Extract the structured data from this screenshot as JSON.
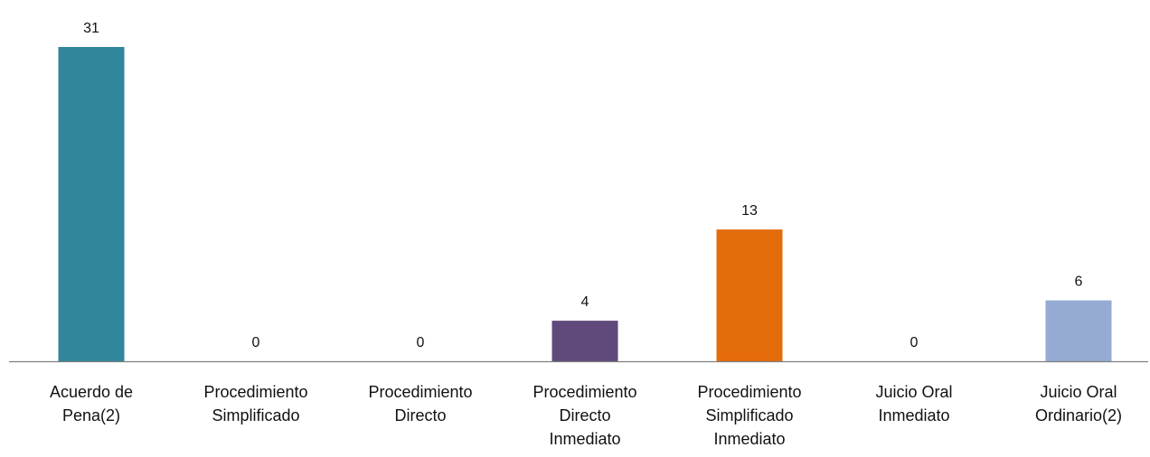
{
  "chart_data": {
    "type": "bar",
    "categories": [
      [
        "Acuerdo de",
        "Pena(2)"
      ],
      [
        "Procedimiento",
        "Simplificado"
      ],
      [
        "Procedimiento",
        "Directo"
      ],
      [
        "Procedimiento",
        "Directo",
        "Inmediato"
      ],
      [
        "Procedimiento",
        "Simplificado",
        "Inmediato"
      ],
      [
        "Juicio Oral",
        "Inmediato"
      ],
      [
        "Juicio Oral",
        "Ordinario(2)"
      ]
    ],
    "values": [
      31,
      0,
      0,
      4,
      13,
      0,
      6
    ],
    "colors": [
      "#31869b",
      "#31869b",
      "#31869b",
      "#604a7b",
      "#e46c0a",
      "#31869b",
      "#95abd3"
    ],
    "axis_color": "#7f7f7f",
    "title": "",
    "xlabel": "",
    "ylabel": "",
    "ylim": [
      0,
      31
    ],
    "grid": false,
    "legend": "none",
    "data_labels": true
  }
}
